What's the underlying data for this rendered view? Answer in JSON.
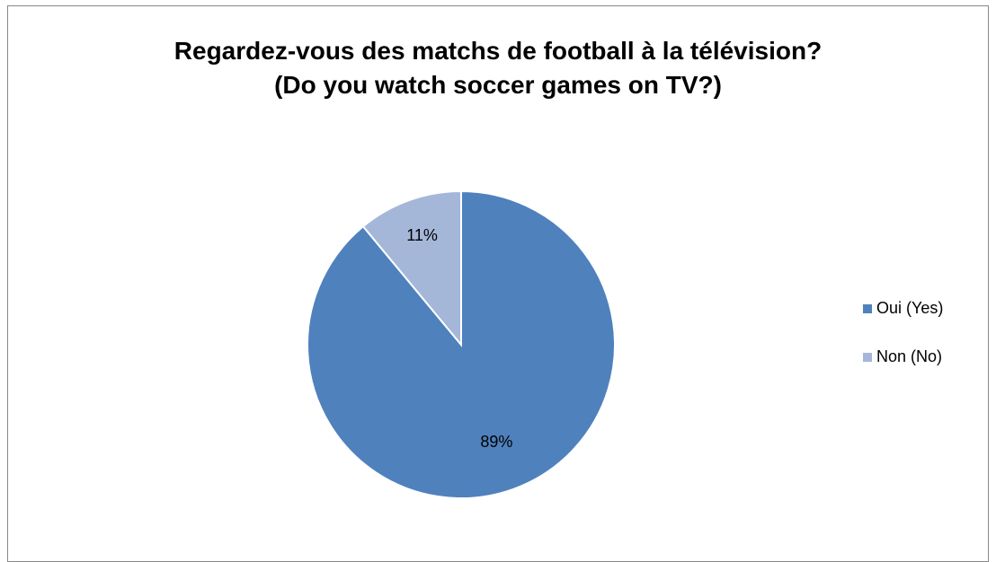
{
  "chart_data": {
    "type": "pie",
    "title_lines": [
      "Regardez-vous des matchs de football à la télévision?",
      "(Do you watch soccer games on TV?)"
    ],
    "categories": [
      "Oui (Yes)",
      "Non (No)"
    ],
    "values": [
      89,
      11
    ],
    "data_labels": [
      "89%",
      "11%"
    ],
    "colors": [
      "#4F81BD",
      "#A5B7D9"
    ],
    "legend_position": "right",
    "start_angle_deg": 0,
    "direction": "clockwise"
  }
}
